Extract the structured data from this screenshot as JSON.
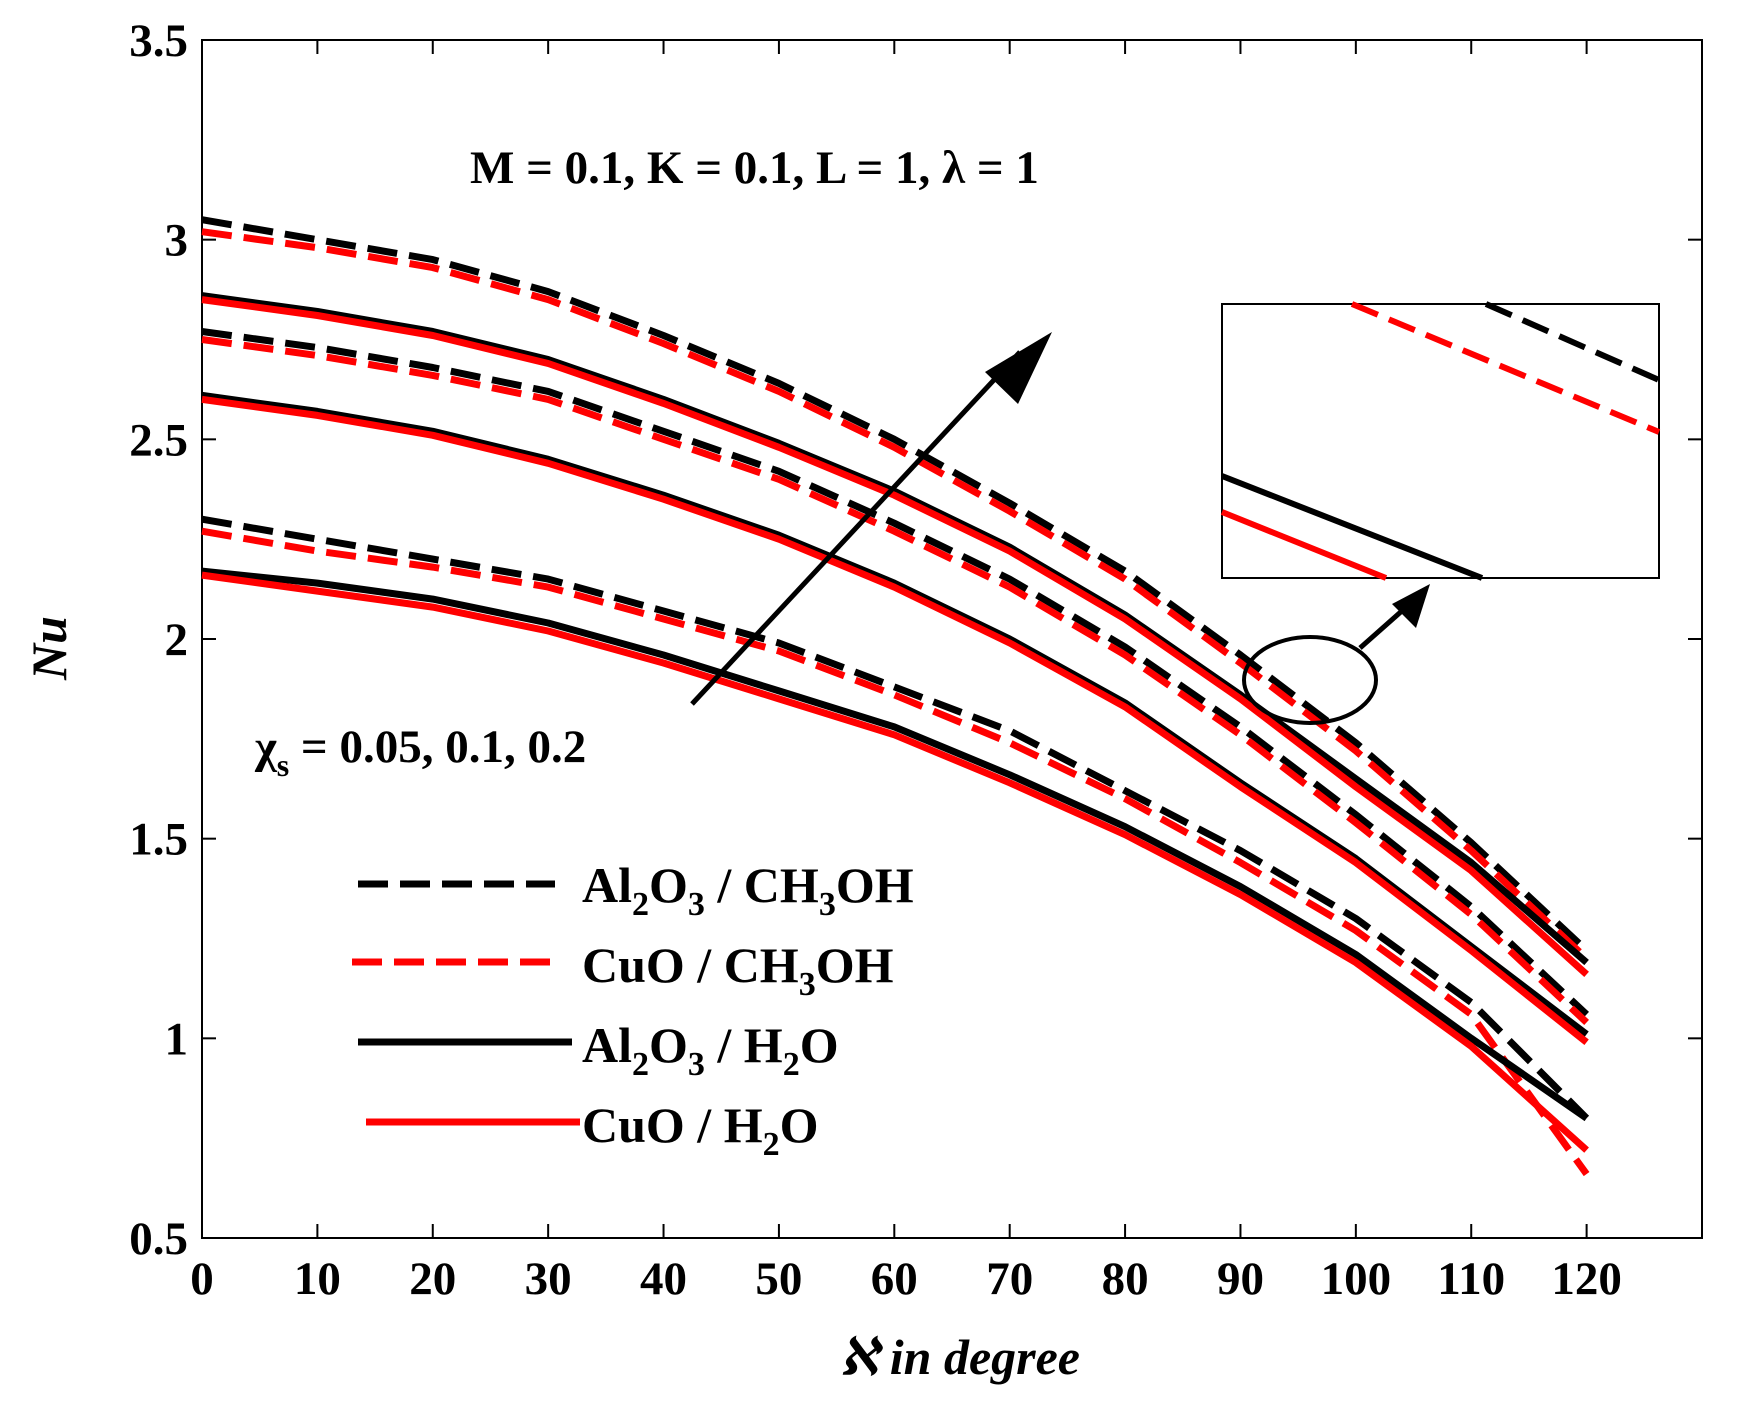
{
  "chart_data": {
    "type": "line",
    "xlabel": "ℵ in degree",
    "ylabel": "Nu",
    "xlim": [
      0,
      130
    ],
    "ylim": [
      0.5,
      3.5
    ],
    "xticks": [
      "0",
      "10",
      "20",
      "30",
      "40",
      "50",
      "60",
      "70",
      "80",
      "90",
      "100",
      "110",
      "120"
    ],
    "yticks": [
      "0.5",
      "1",
      "1.5",
      "2",
      "2.5",
      "3",
      "3.5"
    ],
    "annotation": "M = 0.1, K = 0.1, L = 1, λ = 1",
    "chi_label": {
      "symbol": "χ",
      "sub": "s",
      "values": " = 0.05, 0.1, 0.2"
    },
    "x": [
      0,
      10,
      20,
      30,
      40,
      50,
      60,
      70,
      80,
      90,
      100,
      110,
      120
    ],
    "series": [
      {
        "name": "Al2O3 / CH3OH, χs=0.05",
        "fluid": "Al2O3 / CH3OH",
        "chi": 0.05,
        "values": [
          2.3,
          2.25,
          2.2,
          2.15,
          2.07,
          1.99,
          1.88,
          1.77,
          1.62,
          1.47,
          1.3,
          1.09,
          0.8
        ]
      },
      {
        "name": "CuO / CH3OH, χs=0.05",
        "fluid": "CuO / CH3OH",
        "chi": 0.05,
        "values": [
          2.27,
          2.22,
          2.18,
          2.13,
          2.05,
          1.97,
          1.86,
          1.74,
          1.6,
          1.44,
          1.27,
          1.06,
          0.66
        ]
      },
      {
        "name": "Al2O3 / H2O, χs=0.05",
        "fluid": "Al2O3 / H2O",
        "chi": 0.05,
        "values": [
          2.17,
          2.14,
          2.1,
          2.04,
          1.96,
          1.87,
          1.78,
          1.66,
          1.53,
          1.38,
          1.21,
          1.0,
          0.8
        ]
      },
      {
        "name": "CuO / H2O, χs=0.05",
        "fluid": "CuO / H2O",
        "chi": 0.05,
        "values": [
          2.16,
          2.12,
          2.08,
          2.02,
          1.94,
          1.85,
          1.76,
          1.64,
          1.51,
          1.36,
          1.19,
          0.98,
          0.72
        ]
      },
      {
        "name": "Al2O3 / CH3OH, χs=0.1",
        "fluid": "Al2O3 / CH3OH",
        "chi": 0.1,
        "values": [
          2.77,
          2.73,
          2.68,
          2.62,
          2.52,
          2.42,
          2.29,
          2.15,
          1.98,
          1.78,
          1.56,
          1.33,
          1.06
        ]
      },
      {
        "name": "CuO / CH3OH, χs=0.1",
        "fluid": "CuO / CH3OH",
        "chi": 0.1,
        "values": [
          2.75,
          2.71,
          2.66,
          2.6,
          2.5,
          2.4,
          2.27,
          2.13,
          1.96,
          1.76,
          1.54,
          1.31,
          1.04
        ]
      },
      {
        "name": "Al2O3 / H2O, χs=0.1",
        "fluid": "Al2O3 / H2O",
        "chi": 0.1,
        "values": [
          2.61,
          2.57,
          2.52,
          2.45,
          2.36,
          2.26,
          2.14,
          2.0,
          1.84,
          1.64,
          1.45,
          1.23,
          1.01
        ]
      },
      {
        "name": "CuO / H2O, χs=0.1",
        "fluid": "CuO / H2O",
        "chi": 0.1,
        "values": [
          2.6,
          2.56,
          2.51,
          2.44,
          2.35,
          2.25,
          2.13,
          1.99,
          1.83,
          1.63,
          1.44,
          1.22,
          0.99
        ]
      },
      {
        "name": "Al2O3 / CH3OH, χs=0.2",
        "fluid": "Al2O3 / CH3OH",
        "chi": 0.2,
        "values": [
          3.05,
          3.0,
          2.95,
          2.87,
          2.76,
          2.64,
          2.5,
          2.34,
          2.17,
          1.96,
          1.74,
          1.49,
          1.22
        ]
      },
      {
        "name": "CuO / CH3OH, χs=0.2",
        "fluid": "CuO / CH3OH",
        "chi": 0.2,
        "values": [
          3.02,
          2.98,
          2.93,
          2.85,
          2.74,
          2.62,
          2.48,
          2.32,
          2.15,
          1.94,
          1.72,
          1.47,
          1.2
        ]
      },
      {
        "name": "Al2O3 / H2O, χs=0.2",
        "fluid": "Al2O3 / H2O",
        "chi": 0.2,
        "values": [
          2.86,
          2.82,
          2.77,
          2.7,
          2.6,
          2.49,
          2.37,
          2.23,
          2.06,
          1.86,
          1.65,
          1.44,
          1.19
        ]
      },
      {
        "name": "CuO / H2O, χs=0.2",
        "fluid": "CuO / H2O",
        "chi": 0.2,
        "values": [
          2.85,
          2.81,
          2.76,
          2.69,
          2.59,
          2.48,
          2.36,
          2.22,
          2.05,
          1.85,
          1.63,
          1.42,
          1.16
        ]
      }
    ],
    "legend": {
      "position": "lower-left",
      "entries": [
        {
          "label": "Al2O3 / CH3OH",
          "parts": [
            "Al",
            "2",
            "O",
            "3",
            " / CH",
            "3",
            "OH"
          ],
          "color": "#000000",
          "dashed": true
        },
        {
          "label": "CuO / CH3OH",
          "parts": [
            "CuO / CH",
            "3",
            "OH"
          ],
          "color": "#ff0000",
          "dashed": true
        },
        {
          "label": "Al2O3 / H2O",
          "parts": [
            "Al",
            "2",
            "O",
            "3",
            " / H",
            "2",
            "O"
          ],
          "color": "#000000",
          "dashed": false
        },
        {
          "label": "CuO / H2O",
          "parts": [
            "CuO / H",
            "2",
            "O"
          ],
          "color": "#ff0000",
          "dashed": false
        }
      ]
    },
    "colors": {
      "black": "#000000",
      "red": "#ff0000"
    }
  }
}
